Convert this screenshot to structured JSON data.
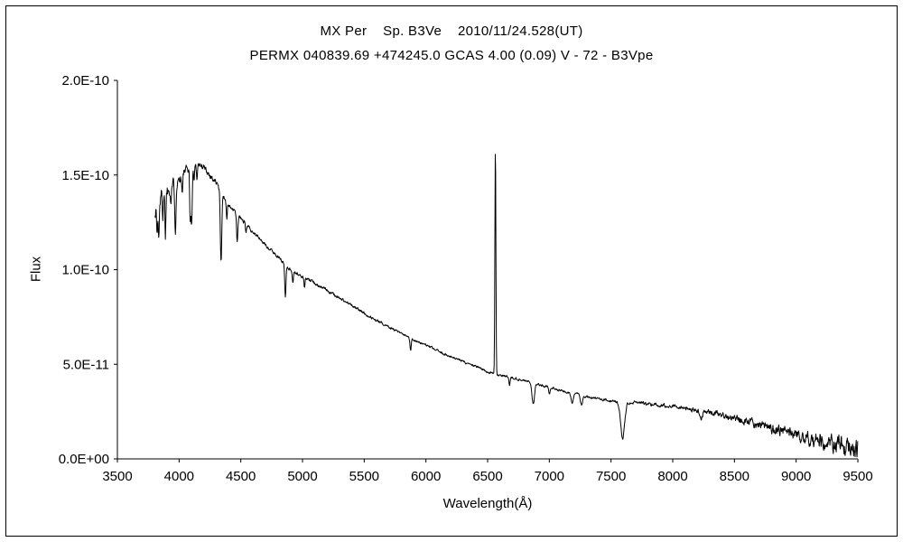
{
  "chart_data": {
    "type": "line",
    "title": "MX Per    Sp. B3Ve    2010/11/24.528(UT)",
    "subtitle": "PERMX 040839.69 +474245.0 GCAS 4.00 (0.09) V - 72 - B3Vpe",
    "xlabel": "Wavelength(Å)",
    "ylabel": "Flux",
    "xlim": [
      3500,
      9500
    ],
    "ylim": [
      0,
      2e-10
    ],
    "grid": false,
    "legend": "none",
    "x_ticks": [
      3500,
      4000,
      4500,
      5000,
      5500,
      6000,
      6500,
      7000,
      7500,
      8000,
      8500,
      9000,
      9500
    ],
    "y_ticks": [
      {
        "value": 0,
        "label": "0.0E+00"
      },
      {
        "value": 5e-11,
        "label": "5.0E-11"
      },
      {
        "value": 1e-10,
        "label": "1.0E-10"
      },
      {
        "value": 1.5e-10,
        "label": "1.5E-10"
      },
      {
        "value": 2e-10,
        "label": "2.0E-10"
      }
    ],
    "series_name": "MX Per spectrum",
    "data_range": [
      3805,
      9500
    ],
    "step": 3,
    "continuum": [
      [
        3800,
        1.3e-10
      ],
      [
        3850,
        1.38e-10
      ],
      [
        3900,
        1.42e-10
      ],
      [
        3950,
        1.45e-10
      ],
      [
        4000,
        1.48e-10
      ],
      [
        4050,
        1.52e-10
      ],
      [
        4100,
        1.55e-10
      ],
      [
        4150,
        1.56e-10
      ],
      [
        4200,
        1.54e-10
      ],
      [
        4250,
        1.5e-10
      ],
      [
        4300,
        1.46e-10
      ],
      [
        4350,
        1.4e-10
      ],
      [
        4400,
        1.34e-10
      ],
      [
        4500,
        1.27e-10
      ],
      [
        4600,
        1.2e-10
      ],
      [
        4700,
        1.13e-10
      ],
      [
        4800,
        1.07e-10
      ],
      [
        4900,
        1e-10
      ],
      [
        5000,
        9.6e-11
      ],
      [
        5100,
        9.3e-11
      ],
      [
        5200,
        8.9e-11
      ],
      [
        5300,
        8.5e-11
      ],
      [
        5400,
        8.1e-11
      ],
      [
        5500,
        7.7e-11
      ],
      [
        5600,
        7.3e-11
      ],
      [
        5700,
        7e-11
      ],
      [
        5800,
        6.6e-11
      ],
      [
        5900,
        6.3e-11
      ],
      [
        6000,
        6e-11
      ],
      [
        6100,
        5.7e-11
      ],
      [
        6200,
        5.4e-11
      ],
      [
        6300,
        5.15e-11
      ],
      [
        6400,
        4.9e-11
      ],
      [
        6500,
        4.6e-11
      ],
      [
        6600,
        4.4e-11
      ],
      [
        6700,
        4.3e-11
      ],
      [
        6800,
        4.15e-11
      ],
      [
        6900,
        3.95e-11
      ],
      [
        7000,
        3.8e-11
      ],
      [
        7100,
        3.6e-11
      ],
      [
        7200,
        3.45e-11
      ],
      [
        7300,
        3.3e-11
      ],
      [
        7400,
        3.15e-11
      ],
      [
        7500,
        3.05e-11
      ],
      [
        7600,
        3e-11
      ],
      [
        7700,
        3e-11
      ],
      [
        7800,
        2.9e-11
      ],
      [
        7900,
        2.85e-11
      ],
      [
        8000,
        2.8e-11
      ],
      [
        8100,
        2.7e-11
      ],
      [
        8200,
        2.6e-11
      ],
      [
        8300,
        2.5e-11
      ],
      [
        8400,
        2.35e-11
      ],
      [
        8500,
        2.15e-11
      ],
      [
        8600,
        2e-11
      ],
      [
        8700,
        1.8e-11
      ],
      [
        8800,
        1.6e-11
      ],
      [
        8900,
        1.45e-11
      ],
      [
        9000,
        1.3e-11
      ],
      [
        9100,
        1.15e-11
      ],
      [
        9200,
        1e-11
      ],
      [
        9300,
        8.5e-12
      ],
      [
        9400,
        7e-12
      ],
      [
        9500,
        5.5e-12
      ]
    ],
    "absorption_lines": [
      {
        "center": 3822,
        "depth": 1.4e-11,
        "sigma": 4
      },
      {
        "center": 3835,
        "depth": 2e-11,
        "sigma": 4
      },
      {
        "center": 3868,
        "depth": 1e-11,
        "sigma": 3
      },
      {
        "center": 3889,
        "depth": 2.2e-11,
        "sigma": 4
      },
      {
        "center": 3934,
        "depth": 8e-12,
        "sigma": 3
      },
      {
        "center": 3970,
        "depth": 2.4e-11,
        "sigma": 5
      },
      {
        "center": 4026,
        "depth": 1e-11,
        "sigma": 4
      },
      {
        "center": 4089,
        "depth": 2.6e-11,
        "sigma": 4
      },
      {
        "center": 4101,
        "depth": 3.3e-11,
        "sigma": 5
      },
      {
        "center": 4121,
        "depth": 9e-12,
        "sigma": 4
      },
      {
        "center": 4144,
        "depth": 7e-12,
        "sigma": 4
      },
      {
        "center": 4340,
        "depth": 3.6e-11,
        "sigma": 6
      },
      {
        "center": 4387,
        "depth": 8e-12,
        "sigma": 4
      },
      {
        "center": 4471,
        "depth": 1.5e-11,
        "sigma": 5
      },
      {
        "center": 4541,
        "depth": 5e-12,
        "sigma": 4
      },
      {
        "center": 4861,
        "depth": 1.7e-11,
        "sigma": 5
      },
      {
        "center": 4922,
        "depth": 6e-12,
        "sigma": 4
      },
      {
        "center": 5016,
        "depth": 5e-12,
        "sigma": 4
      },
      {
        "center": 5876,
        "depth": 6e-12,
        "sigma": 5
      },
      {
        "center": 6678,
        "depth": 4e-12,
        "sigma": 4
      },
      {
        "center": 6870,
        "depth": 1.1e-11,
        "sigma": 10
      },
      {
        "center": 7000,
        "depth": 4e-12,
        "sigma": 6
      },
      {
        "center": 7185,
        "depth": 5e-12,
        "sigma": 9
      },
      {
        "center": 7260,
        "depth": 5e-12,
        "sigma": 9
      },
      {
        "center": 7594,
        "depth": 1.9e-11,
        "sigma": 16
      },
      {
        "center": 8230,
        "depth": 4e-12,
        "sigma": 12
      }
    ],
    "emission_lines": [
      {
        "center": 6563,
        "height": 1.2e-10,
        "sigma": 4
      }
    ],
    "noise": {
      "seed": 1337,
      "correlation": 0.55,
      "scale": 1.6,
      "amplitude": [
        [
          3800,
          5.5e-12
        ],
        [
          3900,
          4.5e-12
        ],
        [
          4000,
          3e-12
        ],
        [
          4200,
          2e-12
        ],
        [
          4400,
          1.3e-12
        ],
        [
          4700,
          1e-12
        ],
        [
          5000,
          9e-13
        ],
        [
          5500,
          8e-13
        ],
        [
          6000,
          7e-13
        ],
        [
          6500,
          7e-13
        ],
        [
          7000,
          7e-13
        ],
        [
          7500,
          8e-13
        ],
        [
          8000,
          1.1e-12
        ],
        [
          8300,
          1.5e-12
        ],
        [
          8600,
          2.2e-12
        ],
        [
          8900,
          3.2e-12
        ],
        [
          9100,
          4.2e-12
        ],
        [
          9300,
          5.2e-12
        ],
        [
          9500,
          6e-12
        ]
      ]
    },
    "line_color": "#000000",
    "background_color": "#ffffff"
  }
}
